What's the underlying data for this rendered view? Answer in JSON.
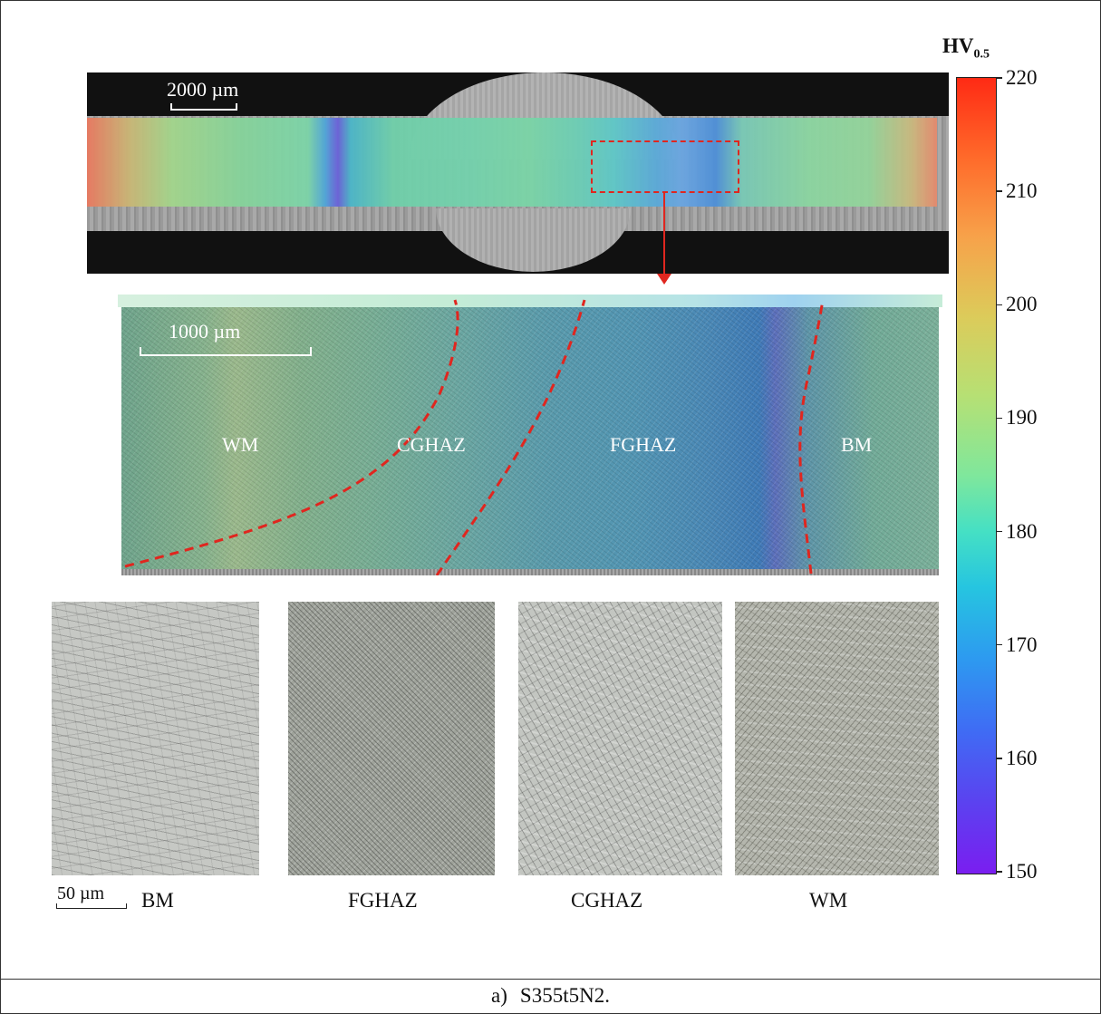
{
  "figure": {
    "caption_label": "a)",
    "caption_text": "S355t5N2."
  },
  "macro_view": {
    "scale_label": "2000 µm"
  },
  "zoom_view": {
    "scale_label": "1000 µm",
    "zones": [
      "WM",
      "CGHAZ",
      "FGHAZ",
      "BM"
    ]
  },
  "micrographs": {
    "scale_label": "50 µm",
    "panels": [
      "BM",
      "FGHAZ",
      "CGHAZ",
      "WM"
    ]
  },
  "colorbar": {
    "title": "HV",
    "title_subscript": "0.5",
    "min": 150,
    "max": 220,
    "ticks": [
      "220",
      "210",
      "200",
      "190",
      "180",
      "170",
      "160",
      "150"
    ],
    "colormap": "rainbow (violet → red)"
  },
  "colors": {
    "annotation_red": "#e0261f"
  }
}
